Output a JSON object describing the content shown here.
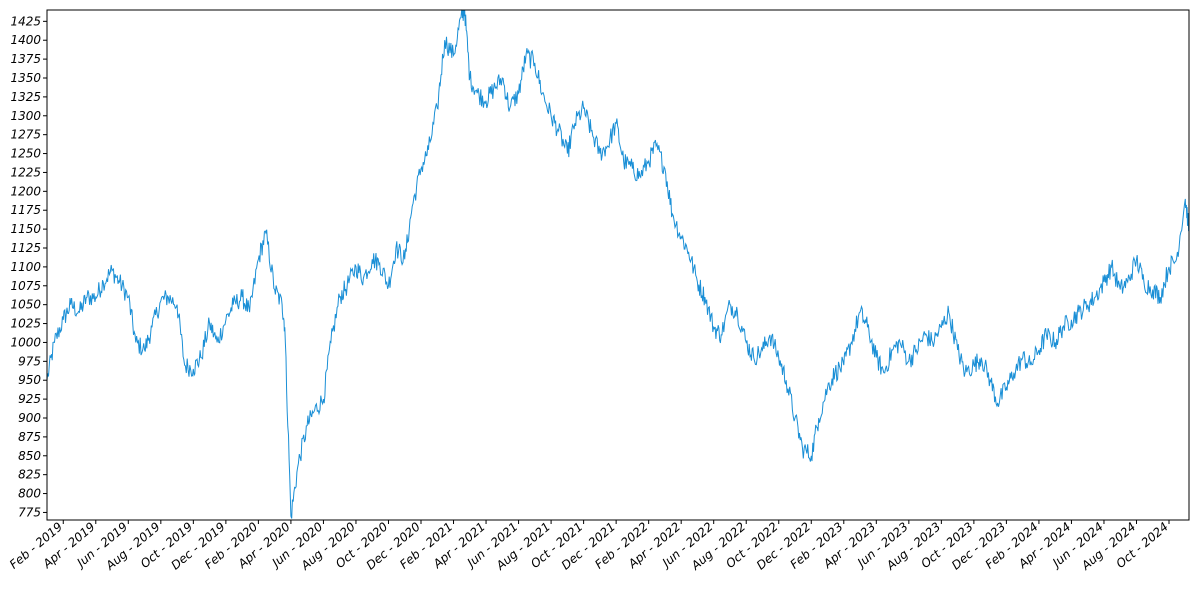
{
  "chart_data": {
    "type": "line",
    "title": "",
    "xlabel": "",
    "ylabel": "",
    "ylim": [
      765,
      1440
    ],
    "y_ticks": [
      775,
      800,
      825,
      850,
      875,
      900,
      925,
      950,
      975,
      1000,
      1025,
      1050,
      1075,
      1100,
      1125,
      1150,
      1175,
      1200,
      1225,
      1250,
      1275,
      1300,
      1325,
      1350,
      1375,
      1400,
      1425
    ],
    "x_tick_labels": [
      "Feb - 2019",
      "Apr - 2019",
      "Jun - 2019",
      "Aug - 2019",
      "Oct - 2019",
      "Dec - 2019",
      "Feb - 2020",
      "Apr - 2020",
      "Jun - 2020",
      "Aug - 2020",
      "Oct - 2020",
      "Dec - 2020",
      "Feb - 2021",
      "Apr - 2021",
      "Jun - 2021",
      "Aug - 2021",
      "Oct - 2021",
      "Dec - 2021",
      "Feb - 2022",
      "Apr - 2022",
      "Jun - 2022",
      "Aug - 2022",
      "Oct - 2022",
      "Dec - 2022",
      "Feb - 2023",
      "Apr - 2023",
      "Jun - 2023",
      "Aug - 2023",
      "Oct - 2023",
      "Dec - 2023",
      "Feb - 2024",
      "Apr - 2024",
      "Jun - 2024",
      "Aug - 2024",
      "Oct - 2024"
    ],
    "grid": false,
    "line_color": "#1a8fd6",
    "series": [
      {
        "x": [
          "2019-01-01",
          "2019-01-15",
          "2019-02-01",
          "2019-02-15",
          "2019-03-01",
          "2019-03-15",
          "2019-04-01",
          "2019-04-15",
          "2019-05-01",
          "2019-05-15",
          "2019-06-01",
          "2019-06-15",
          "2019-07-01",
          "2019-07-15",
          "2019-08-01",
          "2019-08-15",
          "2019-09-01",
          "2019-09-15",
          "2019-10-01",
          "2019-10-15",
          "2019-11-01",
          "2019-11-15",
          "2019-12-01",
          "2019-12-15",
          "2020-01-01",
          "2020-01-15",
          "2020-02-01",
          "2020-02-15",
          "2020-03-01",
          "2020-03-15",
          "2020-03-20",
          "2020-04-01",
          "2020-04-15",
          "2020-05-01",
          "2020-05-15",
          "2020-06-01",
          "2020-06-15",
          "2020-07-01",
          "2020-07-15",
          "2020-08-01",
          "2020-08-15",
          "2020-09-01",
          "2020-09-15",
          "2020-10-01",
          "2020-10-15",
          "2020-11-01",
          "2020-11-15",
          "2020-12-01",
          "2020-12-15",
          "2021-01-01",
          "2021-01-15",
          "2021-02-01",
          "2021-02-15",
          "2021-02-22",
          "2021-03-01",
          "2021-03-15",
          "2021-04-01",
          "2021-04-15",
          "2021-05-01",
          "2021-05-15",
          "2021-06-01",
          "2021-06-15",
          "2021-07-01",
          "2021-07-15",
          "2021-08-01",
          "2021-08-15",
          "2021-09-01",
          "2021-09-15",
          "2021-10-01",
          "2021-10-15",
          "2021-11-01",
          "2021-11-15",
          "2021-12-01",
          "2021-12-15",
          "2022-01-01",
          "2022-01-15",
          "2022-02-01",
          "2022-02-15",
          "2022-03-01",
          "2022-03-15",
          "2022-04-01",
          "2022-04-15",
          "2022-05-01",
          "2022-05-15",
          "2022-06-01",
          "2022-06-15",
          "2022-07-01",
          "2022-07-15",
          "2022-08-01",
          "2022-08-15",
          "2022-09-01",
          "2022-09-15",
          "2022-10-01",
          "2022-10-15",
          "2022-11-01",
          "2022-11-15",
          "2022-12-01",
          "2022-12-15",
          "2023-01-01",
          "2023-01-15",
          "2023-02-01",
          "2023-02-15",
          "2023-03-01",
          "2023-03-15",
          "2023-04-01",
          "2023-04-15",
          "2023-05-01",
          "2023-05-15",
          "2023-06-01",
          "2023-06-15",
          "2023-07-01",
          "2023-07-15",
          "2023-08-01",
          "2023-08-15",
          "2023-09-01",
          "2023-09-15",
          "2023-10-01",
          "2023-10-15",
          "2023-11-01",
          "2023-11-15",
          "2023-12-01",
          "2023-12-15",
          "2024-01-01",
          "2024-01-15",
          "2024-02-01",
          "2024-02-15",
          "2024-03-01",
          "2024-03-15",
          "2024-04-01",
          "2024-04-15",
          "2024-05-01",
          "2024-05-15",
          "2024-06-01",
          "2024-06-15",
          "2024-07-01",
          "2024-07-15",
          "2024-08-01",
          "2024-08-15",
          "2024-09-01",
          "2024-09-15",
          "2024-10-01",
          "2024-10-15",
          "2024-11-01",
          "2024-11-08"
        ],
        "y": [
          950,
          1000,
          1030,
          1050,
          1040,
          1060,
          1060,
          1080,
          1095,
          1080,
          1060,
          1000,
          990,
          1020,
          1055,
          1060,
          1050,
          970,
          965,
          980,
          1025,
          1000,
          1030,
          1050,
          1060,
          1040,
          1110,
          1145,
          1070,
          1050,
          1020,
          770,
          840,
          890,
          910,
          925,
          1000,
          1060,
          1075,
          1100,
          1085,
          1110,
          1105,
          1075,
          1125,
          1110,
          1180,
          1230,
          1255,
          1310,
          1400,
          1380,
          1430,
          1440,
          1350,
          1330,
          1320,
          1335,
          1350,
          1310,
          1330,
          1380,
          1370,
          1330,
          1300,
          1280,
          1250,
          1290,
          1310,
          1280,
          1250,
          1260,
          1290,
          1240,
          1230,
          1220,
          1240,
          1260,
          1230,
          1170,
          1140,
          1120,
          1080,
          1060,
          1020,
          1010,
          1050,
          1040,
          1000,
          980,
          990,
          1010,
          980,
          950,
          900,
          860,
          850,
          900,
          940,
          960,
          970,
          1000,
          1040,
          1020,
          980,
          960,
          990,
          1000,
          975,
          990,
          1010,
          1000,
          1020,
          1040,
          990,
          960,
          970,
          980,
          950,
          920,
          940,
          960,
          980,
          970,
          990,
          1010,
          1000,
          1020,
          1030,
          1040,
          1050,
          1060,
          1080,
          1100,
          1070,
          1080,
          1110,
          1080,
          1070,
          1060,
          1100,
          1110,
          1190,
          1150
        ]
      }
    ]
  }
}
